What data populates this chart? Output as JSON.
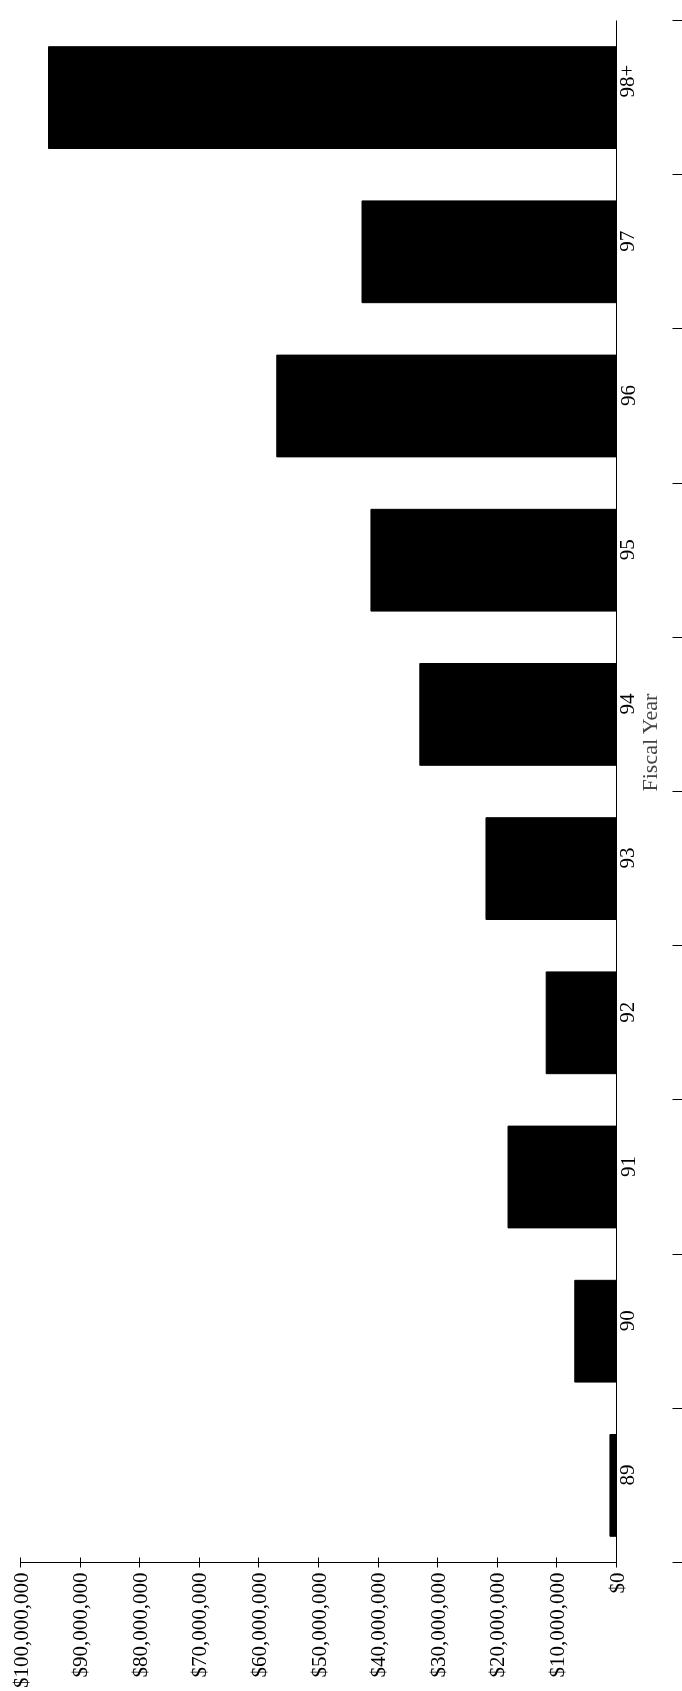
{
  "chart_data": {
    "type": "bar",
    "orientation": "horizontal",
    "ylabel": "Fiscal Year",
    "categories": [
      "98+",
      "97",
      "96",
      "95",
      "94",
      "93",
      "92",
      "91",
      "90",
      "89"
    ],
    "values": [
      95300000,
      42700000,
      57000000,
      41200000,
      33000000,
      21900000,
      11800000,
      18200000,
      7000000,
      1100000
    ],
    "color": "#000000",
    "xlim": [
      100000000,
      0
    ],
    "xticks": [
      {
        "value": 0,
        "label": "$0"
      },
      {
        "value": 10000000,
        "label": "$10,000,000"
      },
      {
        "value": 20000000,
        "label": "$20,000,000"
      },
      {
        "value": 30000000,
        "label": "$30,000,000"
      },
      {
        "value": 40000000,
        "label": "$40,000,000"
      },
      {
        "value": 50000000,
        "label": "$50,000,000"
      },
      {
        "value": 60000000,
        "label": "$60,000,000"
      },
      {
        "value": 70000000,
        "label": "$70,000,000"
      },
      {
        "value": 80000000,
        "label": "$80,000,000"
      },
      {
        "value": 90000000,
        "label": "$90,000,000"
      },
      {
        "value": 100000000,
        "label": "$100,000,000"
      }
    ],
    "grid": false
  }
}
